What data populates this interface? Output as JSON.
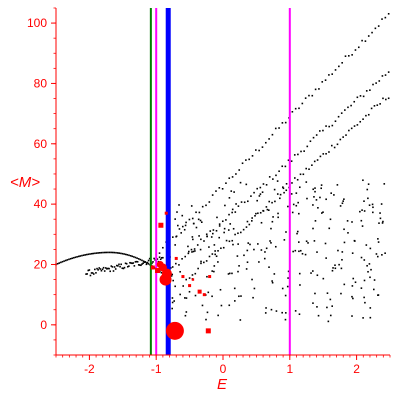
{
  "chart_data": {
    "type": "scatter",
    "xlabel": "E",
    "ylabel": "<M>",
    "xlim": [
      -2.5,
      2.5
    ],
    "ylim": [
      -10,
      105
    ],
    "x_ticks": [
      -2,
      -1,
      0,
      1,
      2
    ],
    "x_tick_labels": [
      "-2",
      "-1",
      "0",
      "1",
      "2"
    ],
    "y_ticks": [
      0,
      20,
      40,
      60,
      80,
      100
    ],
    "y_tick_labels": [
      "0",
      "20",
      "40",
      "60",
      "80",
      "100"
    ],
    "grid": false,
    "colors": {
      "axes": "#ff0000",
      "points": "#000000",
      "highlight": "#ff0000",
      "green_line": "#008000",
      "magenta_line": "#ff00ff",
      "blue_line": "#0000ff"
    },
    "vertical_lines": [
      {
        "x": -1.08,
        "color": "#008000",
        "width": 2
      },
      {
        "x": -1.0,
        "color": "#ff00ff",
        "width": 2
      },
      {
        "x": -0.82,
        "color": "#0000ff",
        "width": 5
      },
      {
        "x": 1.0,
        "color": "#ff00ff",
        "width": 2
      }
    ],
    "curves": [
      {
        "name": "band-1",
        "x_start": -1.0,
        "x_end": 2.48,
        "y_start": 23,
        "y_end": 103
      },
      {
        "name": "band-2",
        "x_start": -0.8,
        "x_end": 2.48,
        "y_start": 18,
        "y_end": 84
      },
      {
        "name": "band-3",
        "x_start": -0.5,
        "x_end": 2.48,
        "y_start": 16,
        "y_end": 76
      },
      {
        "name": "arc",
        "x_start": -2.5,
        "x_end": -0.8,
        "y_peak": 24,
        "x_peak": -1.7,
        "y_start": 20,
        "y_end": 15
      },
      {
        "name": "arc-lower",
        "x_start": -2.05,
        "x_end": -0.9,
        "y_start": 17,
        "y_end": 22
      }
    ],
    "scatter_cloud": {
      "x_range": [
        -0.8,
        2.45
      ],
      "y_range": [
        1,
        48
      ],
      "count": 300
    },
    "red_points": [
      {
        "x": -0.72,
        "y": -2,
        "size": 9
      },
      {
        "x": -0.86,
        "y": 15,
        "size": 6
      },
      {
        "x": -0.84,
        "y": 17,
        "size": 5
      },
      {
        "x": -0.9,
        "y": 19,
        "size": 4
      },
      {
        "x": -0.94,
        "y": 20,
        "size": 3.5
      },
      {
        "x": -0.98,
        "y": 18,
        "size": 2.5
      },
      {
        "x": -1.05,
        "y": 19,
        "size": 2
      },
      {
        "x": -0.93,
        "y": 33,
        "size": 2.5
      },
      {
        "x": -0.85,
        "y": 37,
        "size": 1.5
      },
      {
        "x": -0.7,
        "y": 22,
        "size": 1.5
      },
      {
        "x": -0.5,
        "y": 13,
        "size": 1.5
      },
      {
        "x": -0.35,
        "y": 11,
        "size": 2
      },
      {
        "x": -0.28,
        "y": 10,
        "size": 1.5
      },
      {
        "x": -0.22,
        "y": -2,
        "size": 2.5
      },
      {
        "x": -0.2,
        "y": 16,
        "size": 1.5
      },
      {
        "x": -0.6,
        "y": 16,
        "size": 1.5
      },
      {
        "x": -0.45,
        "y": 15,
        "size": 1.2
      }
    ]
  }
}
